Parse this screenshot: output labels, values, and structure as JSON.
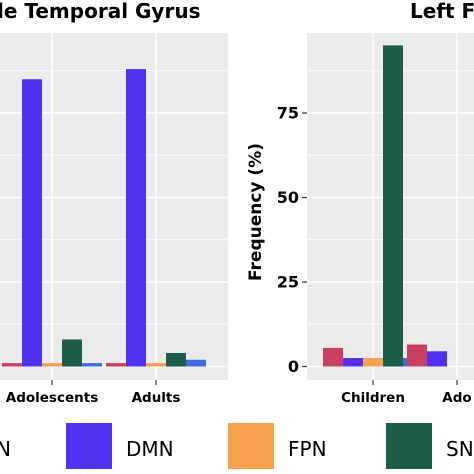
{
  "chart_data": [
    {
      "type": "bar",
      "title": "le Temporal Gyrus",
      "categories": [
        "",
        "Adolescents",
        "Adults"
      ],
      "series": [
        {
          "name": "N",
          "color": "#c94060",
          "values": [
            null,
            1,
            1
          ]
        },
        {
          "name": "DMN",
          "color": "#5232f0",
          "values": [
            null,
            85,
            88
          ]
        },
        {
          "name": "FPN",
          "color": "#f5a150",
          "values": [
            null,
            1,
            1
          ]
        },
        {
          "name": "SN",
          "color": "#1d5e4a",
          "values": [
            null,
            8,
            4
          ]
        },
        {
          "name": "",
          "color": "#3d6be0",
          "values": [
            null,
            1,
            2
          ]
        }
      ],
      "ylim": [
        -2,
        100
      ],
      "grid": true
    },
    {
      "type": "bar",
      "title": "Left F",
      "ylabel": "Frequency (%)",
      "yticks": [
        0,
        25,
        50,
        75
      ],
      "categories": [
        "Children",
        "Ado"
      ],
      "series": [
        {
          "name": "N",
          "color": "#c94060",
          "values": [
            5.5,
            6.5
          ]
        },
        {
          "name": "DMN",
          "color": "#5232f0",
          "values": [
            2.5,
            4.5
          ]
        },
        {
          "name": "FPN",
          "color": "#f5a150",
          "values": [
            2.5,
            null
          ]
        },
        {
          "name": "SN",
          "color": "#1d5e4a",
          "values": [
            95,
            null
          ]
        },
        {
          "name": "",
          "color": "#3d6be0",
          "values": [
            2.5,
            null
          ]
        }
      ],
      "ylim": [
        -2,
        100
      ],
      "grid": true
    }
  ],
  "legend": {
    "placement": "bottom",
    "items": [
      {
        "label": "N",
        "color": "#c94060"
      },
      {
        "label": "DMN",
        "color": "#5232f0"
      },
      {
        "label": "FPN",
        "color": "#f5a150"
      },
      {
        "label": "SN",
        "color": "#1d5e4a"
      }
    ]
  }
}
